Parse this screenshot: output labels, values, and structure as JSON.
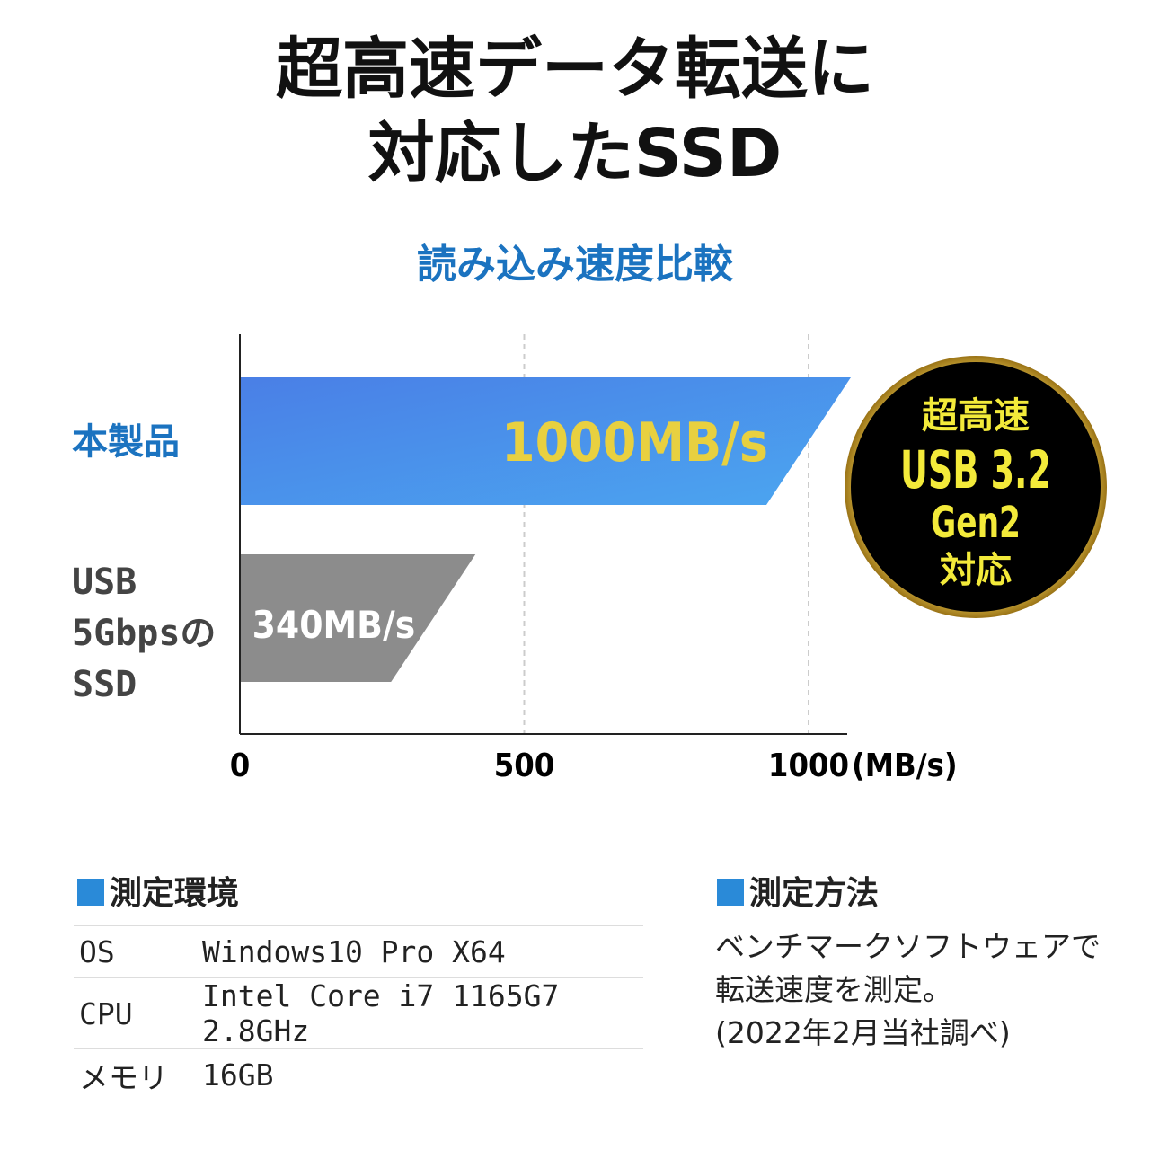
{
  "headline": {
    "line1": "超高速データ転送に",
    "line2": "対応したSSD"
  },
  "chart_data": {
    "type": "bar",
    "orientation": "horizontal",
    "title": "読み込み速度比較",
    "categories": [
      "本製品",
      "USB 5Gbpsの SSD"
    ],
    "values": [
      1000,
      340
    ],
    "data_labels": [
      "1000MB/s",
      "340MB/s"
    ],
    "xlabel": "(MB/s)",
    "xlim": [
      0,
      1000
    ],
    "xticks": [
      "0",
      "500",
      "1000"
    ],
    "grid": "vertical dashed",
    "colors": [
      "#4a82e8",
      "#8c8c8c"
    ],
    "label_color": "#e8d040"
  },
  "categories_display": {
    "product": "本製品",
    "other_l1": "USB",
    "other_l2": "5Gbpsの",
    "other_l3": "SSD"
  },
  "badge": {
    "line1": "超高速",
    "line2": "USB 3.2",
    "line3": "Gen2",
    "line4": "対応"
  },
  "environment": {
    "title": "測定環境",
    "rows": [
      {
        "k": "OS",
        "v": "Windows10 Pro X64"
      },
      {
        "k": "CPU",
        "v": "Intel Core i7 1165G7 2.8GHz"
      },
      {
        "k": "メモリ",
        "v": "16GB"
      }
    ]
  },
  "method": {
    "title": "測定方法",
    "line1": "ベンチマークソフトウェアで",
    "line2": "転送速度を測定。",
    "line3": "(2022年2月当社調べ)"
  }
}
